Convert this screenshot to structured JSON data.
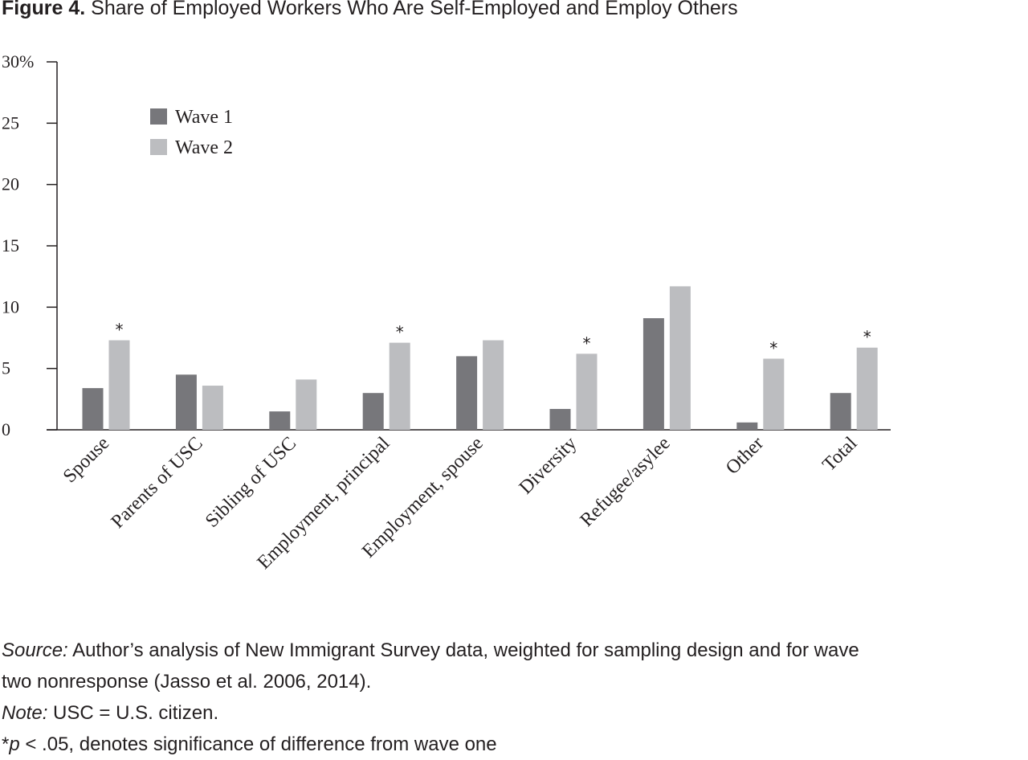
{
  "figure": {
    "label": "Figure 4.",
    "title": "Share of Employed Workers Who Are Self-Employed and Employ Others"
  },
  "chart_data": {
    "type": "bar",
    "title": "Share of Employed Workers Who Are Self-Employed and Employ Others",
    "xlabel": "",
    "ylabel": "",
    "ylim": [
      0,
      30
    ],
    "yticks": [
      0,
      5,
      10,
      15,
      20,
      25,
      30
    ],
    "ytick_labels": [
      "0",
      "5",
      "10",
      "15",
      "20",
      "25",
      "30%"
    ],
    "grid": false,
    "legend_position": "top-left",
    "categories": [
      "Spouse",
      "Parents of USC",
      "Sibling of USC",
      "Employment, principal",
      "Employment, spouse",
      "Diversity",
      "Refugee/asylee",
      "Other",
      "Total"
    ],
    "series": [
      {
        "name": "Wave 1",
        "color": "#77777b",
        "values": [
          3.4,
          4.5,
          1.5,
          3.0,
          6.0,
          1.7,
          9.1,
          0.6,
          3.0
        ]
      },
      {
        "name": "Wave 2",
        "color": "#bcbdc0",
        "values": [
          7.3,
          3.6,
          4.1,
          7.1,
          7.3,
          6.2,
          11.7,
          5.8,
          6.7
        ]
      }
    ],
    "significance_marker": "*",
    "significant": [
      true,
      false,
      false,
      true,
      false,
      true,
      false,
      true,
      true
    ]
  },
  "notes": {
    "source_label": "Source:",
    "source_text": " Author’s analysis of New Immigrant Survey data, weighted for sampling design and for wave",
    "source_text_2": "two nonresponse (Jasso et al. 2006, 2014).",
    "note_label": "Note:",
    "note_text": " USC = U.S. citizen.",
    "sig_star": "*",
    "sig_p": "p",
    "sig_text": " < .05, denotes significance of difference from wave one"
  }
}
